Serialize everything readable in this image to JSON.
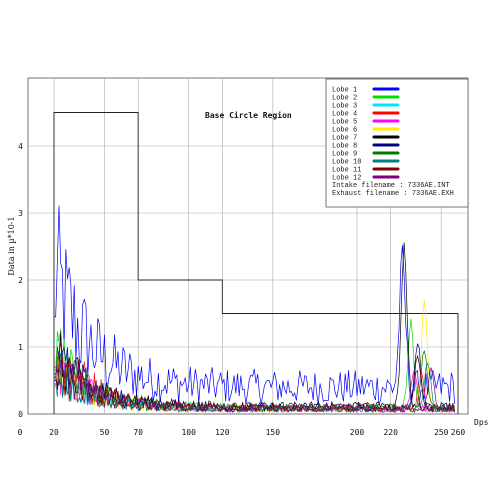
{
  "chart_data": {
    "type": "line",
    "title": "Base Circle Region",
    "xlabel": "Dps",
    "ylabel": "Data in µ*10-1",
    "xlim": [
      0,
      260
    ],
    "ylim": [
      0,
      5
    ],
    "x_ticks": [
      0,
      20,
      50,
      70,
      100,
      120,
      150,
      200,
      220,
      250,
      260
    ],
    "y_ticks": [
      0,
      1,
      2,
      3,
      4
    ],
    "grid": true,
    "legend_position": "top-right",
    "legend_notes": [
      "Intake filename : 7336AE.INT",
      "Exhaust filename : 7336AE.EXH"
    ],
    "region_envelope": {
      "x": [
        20,
        20,
        70,
        70,
        120,
        120,
        260,
        260
      ],
      "y": [
        0,
        4.5,
        4.5,
        2.0,
        2.0,
        1.5,
        1.5,
        0
      ]
    },
    "series": [
      {
        "name": "Lobe  1",
        "color": "#0000ff",
        "peak_x": 227,
        "peak_y": 1.9,
        "start_y": 2.9,
        "base_y": 0.55
      },
      {
        "name": "Lobe  2",
        "color": "#00dd00",
        "peak_x": 232,
        "peak_y": 1.3,
        "start_y": 1.3,
        "base_y": 0.12
      },
      {
        "name": "Lobe  3",
        "color": "#00e5ff",
        "peak_x": 236,
        "peak_y": 0.8,
        "start_y": 1.2,
        "base_y": 0.1
      },
      {
        "name": "Lobe  4",
        "color": "#ff0000",
        "peak_x": 238,
        "peak_y": 0.5,
        "start_y": 1.4,
        "base_y": 0.12
      },
      {
        "name": "Lobe  5",
        "color": "#ff00ff",
        "peak_x": 234,
        "peak_y": 0.6,
        "start_y": 1.1,
        "base_y": 0.1
      },
      {
        "name": "Lobe  6",
        "color": "#ffee00",
        "peak_x": 240,
        "peak_y": 1.6,
        "start_y": 1.0,
        "base_y": 0.1
      },
      {
        "name": "Lobe  7",
        "color": "#000000",
        "peak_x": 228,
        "peak_y": 2.4,
        "start_y": 1.2,
        "base_y": 0.15
      },
      {
        "name": "Lobe  8",
        "color": "#000080",
        "peak_x": 236,
        "peak_y": 1.0,
        "start_y": 1.2,
        "base_y": 0.14
      },
      {
        "name": "Lobe  9",
        "color": "#007700",
        "peak_x": 240,
        "peak_y": 0.9,
        "start_y": 1.0,
        "base_y": 0.12
      },
      {
        "name": "Lobe 10",
        "color": "#008080",
        "peak_x": 242,
        "peak_y": 0.7,
        "start_y": 0.9,
        "base_y": 0.1
      },
      {
        "name": "Lobe 11",
        "color": "#800000",
        "peak_x": 236,
        "peak_y": 0.8,
        "start_y": 1.1,
        "base_y": 0.12
      },
      {
        "name": "Lobe 12",
        "color": "#800080",
        "peak_x": 244,
        "peak_y": 0.6,
        "start_y": 1.0,
        "base_y": 0.1
      }
    ]
  }
}
